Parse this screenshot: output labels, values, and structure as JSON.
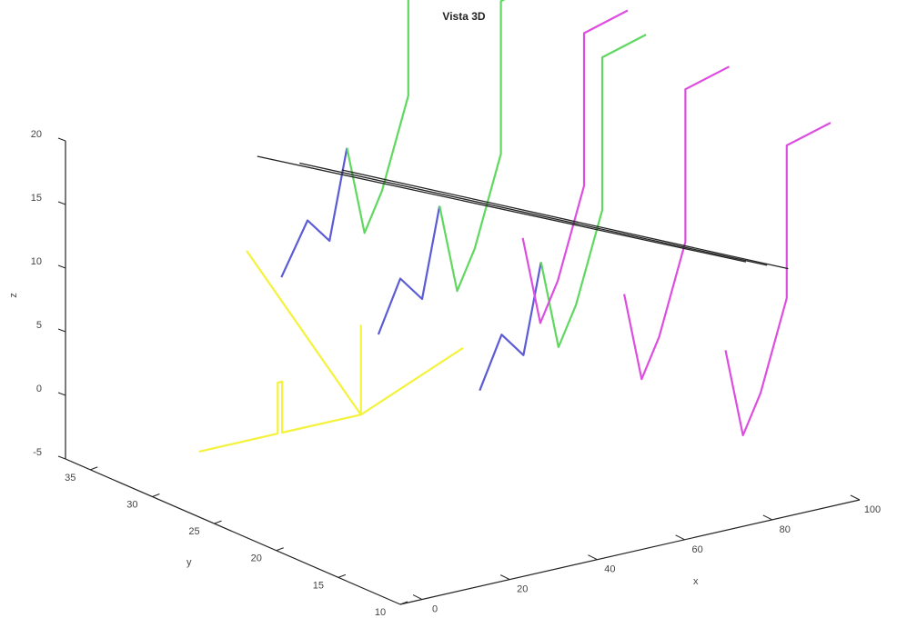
{
  "chart_data": {
    "type": "line3d",
    "title": "Vista 3D",
    "xlabel": "x",
    "ylabel": "y",
    "zlabel": "z",
    "x_ticks": [
      "0",
      "20",
      "40",
      "60",
      "80",
      "100"
    ],
    "y_ticks": [
      "10",
      "15",
      "20",
      "25",
      "30",
      "35"
    ],
    "z_ticks": [
      "-5",
      "0",
      "5",
      "10",
      "15",
      "20"
    ],
    "xlim": [
      -5,
      100
    ],
    "ylim": [
      10,
      37
    ],
    "zlim": [
      -5,
      20
    ],
    "grid": false,
    "series": [
      {
        "color": "#f4f23a",
        "points": [
          [
            0,
            28,
            -1
          ],
          [
            18,
            28,
            -1
          ],
          [
            18,
            28,
            3
          ],
          [
            19,
            28,
            3
          ],
          [
            19,
            28,
            -1
          ],
          [
            37,
            28,
            -1
          ],
          [
            28,
            34,
            10
          ],
          [
            37,
            28,
            -1
          ],
          [
            37,
            28,
            6
          ],
          [
            37,
            28,
            -1
          ],
          [
            49,
            24,
            5
          ]
        ]
      },
      {
        "color": "#5b5bd6",
        "points": [
          [
            33,
            33,
            8
          ],
          [
            39,
            33,
            12
          ],
          [
            44,
            33,
            10
          ],
          [
            48,
            33,
            17
          ]
        ]
      },
      {
        "color": "#5b5bd6",
        "points": [
          [
            41,
            28,
            5
          ],
          [
            46,
            28,
            9
          ],
          [
            51,
            28,
            7
          ],
          [
            55,
            28,
            14
          ]
        ]
      },
      {
        "color": "#5b5bd6",
        "points": [
          [
            50,
            23,
            2
          ],
          [
            55,
            23,
            6
          ],
          [
            60,
            23,
            4
          ],
          [
            64,
            23,
            11
          ]
        ]
      },
      {
        "color": "#5fd85f",
        "points": [
          [
            48,
            33,
            17
          ],
          [
            52,
            33,
            10
          ],
          [
            56,
            33,
            13
          ],
          [
            62,
            33,
            20
          ],
          [
            62,
            33,
            32
          ],
          [
            72,
            33,
            33
          ]
        ]
      },
      {
        "color": "#5fd85f",
        "points": [
          [
            55,
            28,
            14
          ],
          [
            59,
            28,
            7
          ],
          [
            63,
            28,
            10
          ],
          [
            69,
            28,
            17
          ],
          [
            69,
            28,
            29
          ],
          [
            79,
            28,
            30
          ]
        ]
      },
      {
        "color": "#5fd85f",
        "points": [
          [
            64,
            23,
            11
          ],
          [
            68,
            23,
            4
          ],
          [
            72,
            23,
            7
          ],
          [
            78,
            23,
            14
          ],
          [
            78,
            23,
            26
          ],
          [
            88,
            23,
            27
          ]
        ]
      },
      {
        "color": "#dd4ee0",
        "points": [
          [
            74,
            28,
            10
          ],
          [
            78,
            28,
            3
          ],
          [
            82,
            28,
            6
          ],
          [
            88,
            28,
            13
          ],
          [
            88,
            28,
            25
          ],
          [
            98,
            28,
            26
          ]
        ]
      },
      {
        "color": "#dd4ee0",
        "points": [
          [
            83,
            23,
            7
          ],
          [
            87,
            23,
            0
          ],
          [
            91,
            23,
            3
          ],
          [
            97,
            23,
            10
          ],
          [
            97,
            23,
            22
          ],
          [
            107,
            23,
            23
          ]
        ]
      },
      {
        "color": "#dd4ee0",
        "points": [
          [
            92,
            18,
            4
          ],
          [
            96,
            18,
            -3
          ],
          [
            100,
            18,
            0
          ],
          [
            106,
            18,
            7
          ],
          [
            106,
            18,
            19
          ],
          [
            116,
            18,
            20
          ]
        ]
      },
      {
        "color": "#222222",
        "points": [
          [
            36,
            36,
            16
          ],
          [
            108,
            22,
            8
          ]
        ]
      },
      {
        "color": "#222222",
        "points": [
          [
            40,
            34,
            16
          ],
          [
            110,
            21,
            8
          ]
        ]
      },
      {
        "color": "#222222",
        "points": [
          [
            44,
            32,
            16
          ],
          [
            112,
            20,
            8
          ]
        ]
      }
    ]
  }
}
